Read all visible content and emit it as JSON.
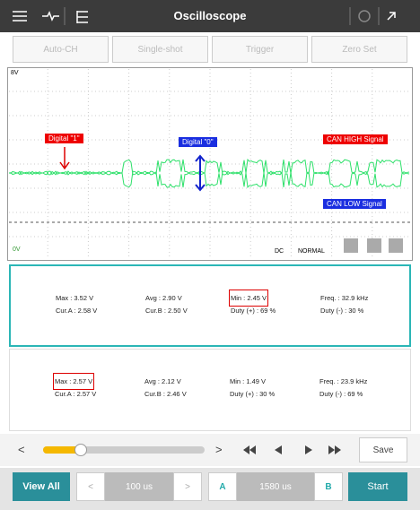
{
  "toolbar": {
    "title": "Oscilloscope"
  },
  "buttons": [
    "Auto-CH",
    "Single-shot",
    "Trigger",
    "Zero Set"
  ],
  "scope": {
    "top_label": "8V",
    "bottom_label": "0V",
    "coupling": "DC",
    "mode": "NORMAL",
    "annotations": [
      "Digital \"1\"",
      "Digital \"0\"",
      "CAN HIGH Signal",
      "CAN LOW Signal"
    ]
  },
  "panels": [
    {
      "columns": [
        [
          "Max : 3.52 V",
          "Cur.A : 2.58 V"
        ],
        [
          "Avg : 2.90 V",
          "Cur.B : 2.50 V"
        ],
        [
          "Min : 2.45 V",
          "Duty (+) : 69 %"
        ],
        [
          "Freq. : 32.9 kHz",
          "Duty (-) : 30 %"
        ]
      ]
    },
    {
      "columns": [
        [
          "Max : 2.57 V",
          "Cur.A : 2.57 V"
        ],
        [
          "Avg : 2.12 V",
          "Cur.B : 2.46 V"
        ],
        [
          "Min : 1.49 V",
          "Duty (+) : 30 %"
        ],
        [
          "Freq. : 23.9 kHz",
          "Duty (-) : 69 %"
        ]
      ]
    }
  ],
  "playback": {
    "prev": "<",
    "next": ">",
    "save": "Save"
  },
  "footer": {
    "view_all": "View All",
    "prev": "<",
    "time_div": "100 us",
    "next": ">",
    "cursor_a": "A",
    "cursor_time": "1580 us",
    "cursor_b": "B",
    "start": "Start"
  }
}
